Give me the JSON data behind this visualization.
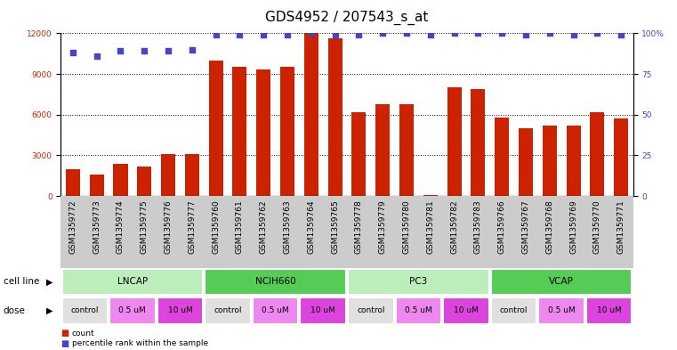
{
  "title": "GDS4952 / 207543_s_at",
  "samples": [
    "GSM1359772",
    "GSM1359773",
    "GSM1359774",
    "GSM1359775",
    "GSM1359776",
    "GSM1359777",
    "GSM1359760",
    "GSM1359761",
    "GSM1359762",
    "GSM1359763",
    "GSM1359764",
    "GSM1359765",
    "GSM1359778",
    "GSM1359779",
    "GSM1359780",
    "GSM1359781",
    "GSM1359782",
    "GSM1359783",
    "GSM1359766",
    "GSM1359767",
    "GSM1359768",
    "GSM1359769",
    "GSM1359770",
    "GSM1359771"
  ],
  "counts": [
    2000,
    1600,
    2400,
    2200,
    3100,
    3100,
    10000,
    9500,
    9300,
    9500,
    12000,
    11600,
    6200,
    6800,
    6800,
    100,
    8000,
    7900,
    5800,
    5000,
    5200,
    5200,
    6200,
    5700
  ],
  "percentile_ranks": [
    88,
    86,
    89,
    89,
    89,
    90,
    99,
    99,
    99,
    99,
    100,
    99,
    99,
    100,
    100,
    99,
    100,
    100,
    100,
    99,
    100,
    99,
    100,
    99
  ],
  "cell_lines": [
    {
      "label": "LNCAP",
      "start": 0,
      "end": 6,
      "color": "#bbeebb"
    },
    {
      "label": "NCIH660",
      "start": 6,
      "end": 12,
      "color": "#55cc55"
    },
    {
      "label": "PC3",
      "start": 12,
      "end": 18,
      "color": "#bbeebb"
    },
    {
      "label": "VCAP",
      "start": 18,
      "end": 24,
      "color": "#55cc55"
    }
  ],
  "doses": [
    {
      "label": "control",
      "start": 0,
      "end": 2,
      "color": "#e0e0e0"
    },
    {
      "label": "0.5 uM",
      "start": 2,
      "end": 4,
      "color": "#ee88ee"
    },
    {
      "label": "10 uM",
      "start": 4,
      "end": 6,
      "color": "#dd44dd"
    },
    {
      "label": "control",
      "start": 6,
      "end": 8,
      "color": "#e0e0e0"
    },
    {
      "label": "0.5 uM",
      "start": 8,
      "end": 10,
      "color": "#ee88ee"
    },
    {
      "label": "10 uM",
      "start": 10,
      "end": 12,
      "color": "#dd44dd"
    },
    {
      "label": "control",
      "start": 12,
      "end": 14,
      "color": "#e0e0e0"
    },
    {
      "label": "0.5 uM",
      "start": 14,
      "end": 16,
      "color": "#ee88ee"
    },
    {
      "label": "10 uM",
      "start": 16,
      "end": 18,
      "color": "#dd44dd"
    },
    {
      "label": "control",
      "start": 18,
      "end": 20,
      "color": "#e0e0e0"
    },
    {
      "label": "0.5 uM",
      "start": 20,
      "end": 22,
      "color": "#ee88ee"
    },
    {
      "label": "10 uM",
      "start": 22,
      "end": 24,
      "color": "#dd44dd"
    }
  ],
  "bar_color": "#cc2200",
  "dot_color": "#4444cc",
  "left_ylim": [
    0,
    12000
  ],
  "left_yticks": [
    0,
    3000,
    6000,
    9000,
    12000
  ],
  "right_ylim": [
    0,
    100
  ],
  "right_yticks": [
    0,
    25,
    50,
    75,
    100
  ],
  "left_ylabel_color": "#cc2200",
  "right_ylabel_color": "#4444cc",
  "background_color": "#ffffff",
  "sample_bg_color": "#cccccc",
  "title_fontsize": 11,
  "tick_fontsize": 6.5,
  "label_fontsize": 7.5
}
